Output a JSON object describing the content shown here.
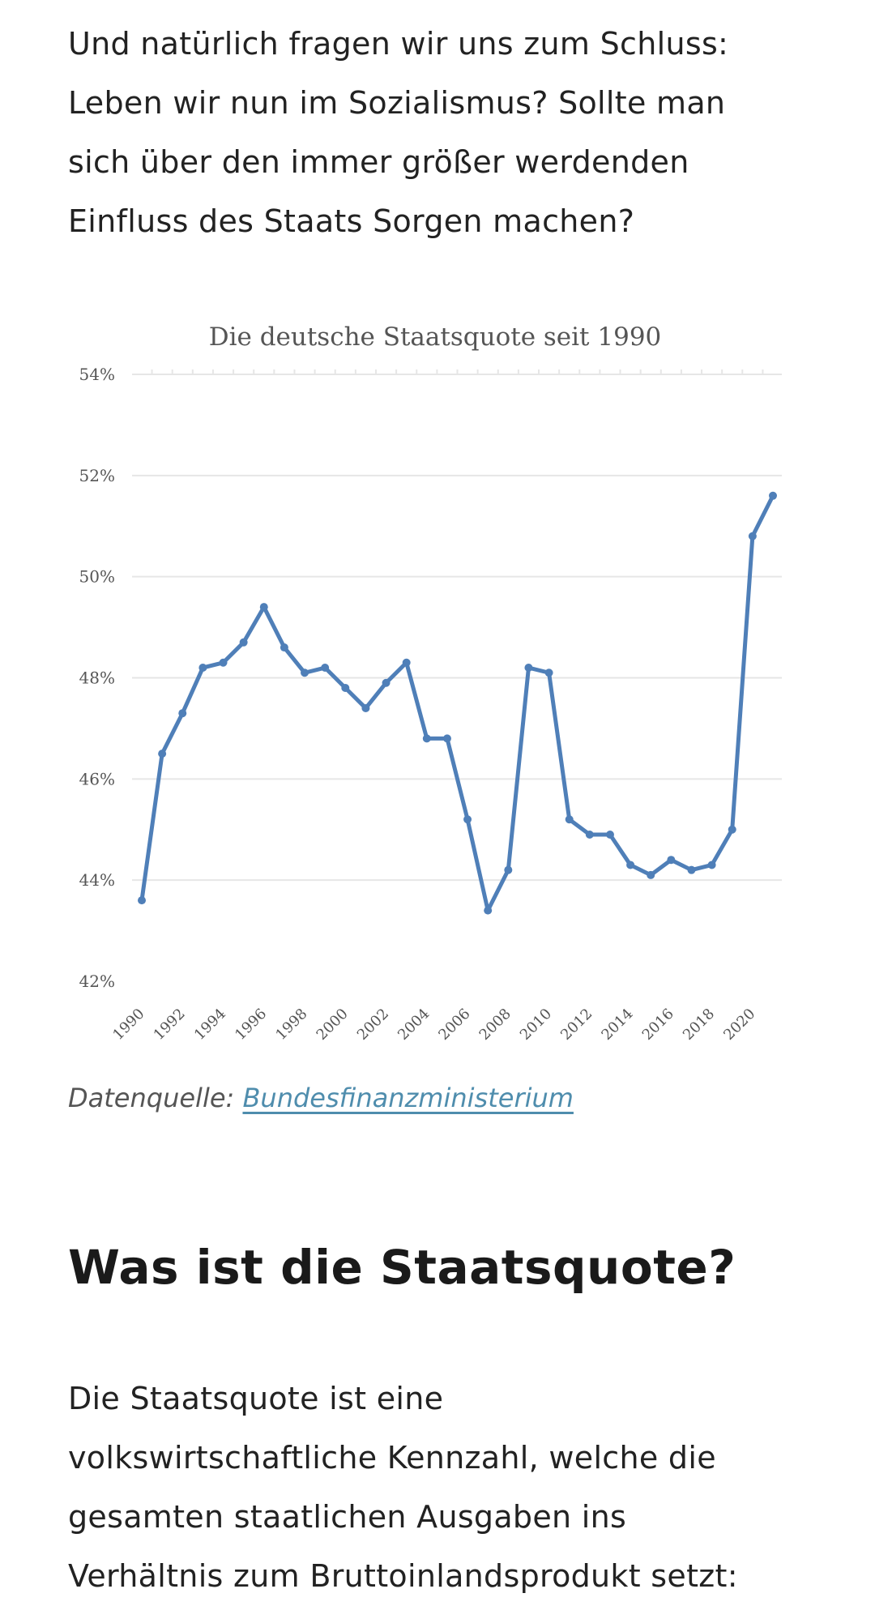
{
  "article": {
    "intro_lines": [
      "Und natürlich fragen wir uns zum Schluss:",
      "Leben wir nun im Sozialismus? Sollte man",
      "sich über den immer größer werdenden",
      "Einfluss des Staats Sorgen machen?"
    ],
    "source_label": "Datenquelle:",
    "source_link": "Bundesfinanzministerium",
    "heading": "Was ist die Staatsquote?",
    "body_lines": [
      "Die Staatsquote ist eine",
      "volkswirtschaftliche Kennzahl, welche die",
      "gesamten staatlichen Ausgaben ins",
      "Verhältnis zum Bruttoinlandsprodukt setzt:"
    ]
  },
  "colors": {
    "line": "#4f7fb8",
    "grid": "#e6e6e6",
    "link": "#4f8dad"
  },
  "chart_data": {
    "type": "line",
    "title": "Die deutsche Staatsquote seit 1990",
    "xlabel": "",
    "ylabel": "",
    "ylim": [
      42,
      54
    ],
    "y_ticks": [
      "42%",
      "44%",
      "46%",
      "48%",
      "50%",
      "52%",
      "54%"
    ],
    "y_tick_values": [
      42,
      44,
      46,
      48,
      50,
      52,
      54
    ],
    "x_ticks": [
      "1990",
      "1992",
      "1994",
      "1996",
      "1998",
      "2000",
      "2002",
      "2004",
      "2006",
      "2008",
      "2010",
      "2012",
      "2014",
      "2016",
      "2018",
      "2020"
    ],
    "grid": true,
    "series": [
      {
        "x": [
          1990,
          1991,
          1992,
          1993,
          1994,
          1995,
          1996,
          1997,
          1998,
          1999,
          2000,
          2001,
          2002,
          2003,
          2004,
          2005,
          2006,
          2007,
          2008,
          2009,
          2010,
          2011,
          2012,
          2013,
          2014,
          2015,
          2016,
          2017,
          2018,
          2019,
          2020,
          2021
        ],
        "values": [
          43.6,
          46.5,
          47.3,
          48.2,
          48.3,
          48.7,
          49.4,
          48.6,
          48.1,
          48.2,
          47.8,
          47.4,
          47.9,
          48.3,
          46.8,
          46.8,
          45.2,
          43.4,
          44.2,
          48.2,
          48.1,
          45.2,
          44.9,
          44.9,
          44.3,
          44.1,
          44.4,
          44.2,
          44.3,
          45.0,
          50.8,
          51.6
        ]
      }
    ]
  }
}
